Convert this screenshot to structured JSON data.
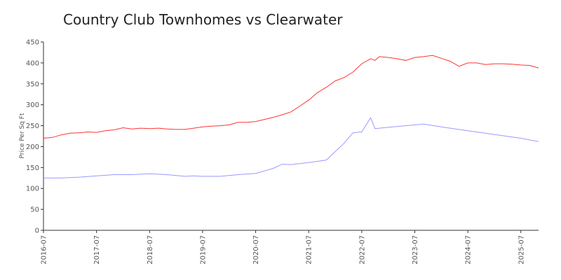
{
  "chart_data": {
    "type": "line",
    "title": "Country Club Townhomes vs Clearwater",
    "xlabel": "",
    "ylabel": "Price Per Sq Ft",
    "ylim": [
      0,
      450
    ],
    "y_ticks": [
      0,
      50,
      100,
      150,
      200,
      250,
      300,
      350,
      400,
      450
    ],
    "x_ticks": [
      "2016-07",
      "2017-07",
      "2018-07",
      "2019-07",
      "2020-07",
      "2021-07",
      "2022-07",
      "2023-07",
      "2024-07",
      "2025-07"
    ],
    "x_range": [
      "2016-07",
      "2025-11"
    ],
    "grid": false,
    "legend": "none",
    "series": [
      {
        "color": "#ff3333",
        "points": [
          [
            "2016-07",
            220
          ],
          [
            "2016-09",
            222
          ],
          [
            "2016-11",
            228
          ],
          [
            "2017-01",
            232
          ],
          [
            "2017-03",
            233
          ],
          [
            "2017-05",
            235
          ],
          [
            "2017-07",
            234
          ],
          [
            "2017-09",
            238
          ],
          [
            "2017-11",
            240
          ],
          [
            "2018-01",
            245
          ],
          [
            "2018-03",
            242
          ],
          [
            "2018-05",
            244
          ],
          [
            "2018-07",
            243
          ],
          [
            "2018-09",
            244
          ],
          [
            "2018-11",
            242
          ],
          [
            "2019-01",
            241
          ],
          [
            "2019-03",
            241
          ],
          [
            "2019-05",
            244
          ],
          [
            "2019-07",
            247
          ],
          [
            "2019-09",
            249
          ],
          [
            "2019-11",
            250
          ],
          [
            "2020-01",
            252
          ],
          [
            "2020-03",
            258
          ],
          [
            "2020-05",
            258
          ],
          [
            "2020-07",
            260
          ],
          [
            "2020-09",
            265
          ],
          [
            "2020-11",
            270
          ],
          [
            "2021-01",
            276
          ],
          [
            "2021-03",
            283
          ],
          [
            "2021-05",
            297
          ],
          [
            "2021-07",
            311
          ],
          [
            "2021-09",
            329
          ],
          [
            "2021-11",
            342
          ],
          [
            "2022-01",
            357
          ],
          [
            "2022-03",
            365
          ],
          [
            "2022-05",
            378
          ],
          [
            "2022-07",
            398
          ],
          [
            "2022-09",
            410
          ],
          [
            "2022-10",
            406
          ],
          [
            "2022-11",
            415
          ],
          [
            "2023-01",
            413
          ],
          [
            "2023-03",
            410
          ],
          [
            "2023-05",
            406
          ],
          [
            "2023-07",
            413
          ],
          [
            "2023-09",
            415
          ],
          [
            "2023-11",
            418
          ],
          [
            "2024-01",
            411
          ],
          [
            "2024-03",
            404
          ],
          [
            "2024-05",
            392
          ],
          [
            "2024-07",
            400
          ],
          [
            "2024-09",
            400
          ],
          [
            "2024-11",
            396
          ],
          [
            "2025-01",
            398
          ],
          [
            "2025-03",
            398
          ],
          [
            "2025-05",
            397
          ],
          [
            "2025-07",
            395
          ],
          [
            "2025-09",
            394
          ],
          [
            "2025-11",
            388
          ]
        ]
      },
      {
        "color": "#9999ff",
        "points": [
          [
            "2016-07",
            125
          ],
          [
            "2016-11",
            125
          ],
          [
            "2017-03",
            127
          ],
          [
            "2017-07",
            130
          ],
          [
            "2017-11",
            133
          ],
          [
            "2018-03",
            133
          ],
          [
            "2018-07",
            135
          ],
          [
            "2018-11",
            133
          ],
          [
            "2019-01",
            131
          ],
          [
            "2019-03",
            129
          ],
          [
            "2019-05",
            130
          ],
          [
            "2019-07",
            129
          ],
          [
            "2019-11",
            129
          ],
          [
            "2020-03",
            133
          ],
          [
            "2020-07",
            136
          ],
          [
            "2020-11",
            148
          ],
          [
            "2021-01",
            158
          ],
          [
            "2021-03",
            157
          ],
          [
            "2021-07",
            162
          ],
          [
            "2021-11",
            168
          ],
          [
            "2022-03",
            208
          ],
          [
            "2022-05",
            233
          ],
          [
            "2022-07",
            235
          ],
          [
            "2022-09",
            269
          ],
          [
            "2022-10",
            243
          ],
          [
            "2023-01",
            246
          ],
          [
            "2023-07",
            252
          ],
          [
            "2023-09",
            254
          ],
          [
            "2024-01",
            247
          ],
          [
            "2024-07",
            238
          ],
          [
            "2025-01",
            229
          ],
          [
            "2025-07",
            220
          ],
          [
            "2025-11",
            212
          ]
        ]
      }
    ]
  }
}
